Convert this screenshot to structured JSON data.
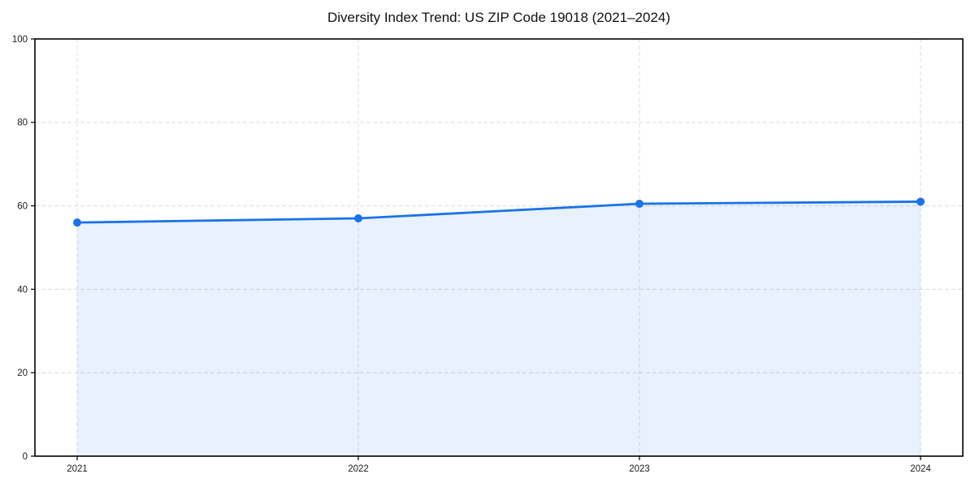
{
  "page": {
    "background": "#ffffff"
  },
  "chart_data": {
    "type": "line",
    "title": "Diversity Index Trend: US ZIP Code 19018 (2021–2024)",
    "xlabel": "",
    "ylabel": "",
    "categories": [
      "2021",
      "2022",
      "2023",
      "2024"
    ],
    "series": [
      {
        "name": "Diversity Index",
        "values": [
          56,
          57,
          60.5,
          61
        ]
      }
    ],
    "ylim": [
      0,
      100
    ],
    "yticks": [
      0,
      20,
      40,
      60,
      80,
      100
    ],
    "grid": true,
    "grid_style": "dashed",
    "legend_position": "none",
    "area_fill": true,
    "marker": "circle",
    "colors": {
      "line": "#1a73e8",
      "area": "rgba(26,115,232,0.10)",
      "grid": "#dcdcdc",
      "spine": "#000000",
      "tick_text": "#1a1a1a",
      "title_text": "#111111"
    }
  }
}
